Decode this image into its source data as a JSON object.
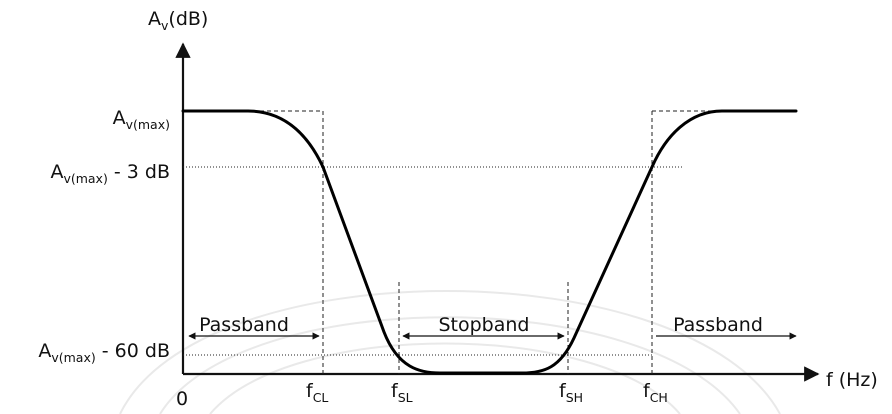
{
  "axes": {
    "y_label_main": "A",
    "y_label_sub": "v",
    "y_label_unit": "(dB)",
    "x_label": "f (Hz)",
    "origin_label": "0"
  },
  "levels": {
    "max": {
      "main": "A",
      "sub": "v(max)",
      "suffix": ""
    },
    "minus3": {
      "main": "A",
      "sub": "v(max)",
      "suffix": " - 3 dB"
    },
    "minus60": {
      "main": "A",
      "sub": "v(max)",
      "suffix": " - 60 dB"
    }
  },
  "frequencies": [
    {
      "main": "f",
      "sub": "CL"
    },
    {
      "main": "f",
      "sub": "SL"
    },
    {
      "main": "f",
      "sub": "SH"
    },
    {
      "main": "f",
      "sub": "CH"
    }
  ],
  "bands": {
    "passband_left": "Passband",
    "stopband": "Stopband",
    "passband_right": "Passband"
  }
}
